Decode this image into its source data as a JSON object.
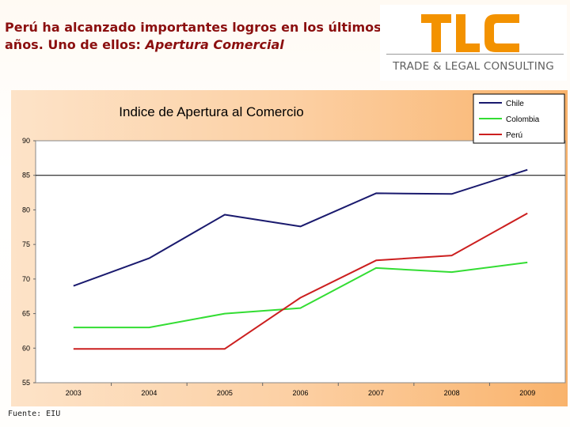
{
  "header": {
    "headline_line1": "Perú ha alcanzado importantes logros en los últimos",
    "headline_line2_plain": "años.  Uno de ellos: ",
    "headline_line2_italic": "Apertura Comercial"
  },
  "logo": {
    "mark": "TLC",
    "subtitle": "TRADE & LEGAL CONSULTING",
    "mark_color": "#f39200"
  },
  "footer": {
    "source": "Fuente: EIU"
  },
  "chart_data": {
    "type": "line",
    "title": "Indice de Apertura al Comercio",
    "x": [
      "2003",
      "2004",
      "2005",
      "2006",
      "2007",
      "2008",
      "2009"
    ],
    "ylim": [
      55,
      90
    ],
    "yticks": [
      90,
      85,
      80,
      75,
      70,
      65,
      60,
      55
    ],
    "grid": false,
    "reference_line": 85,
    "legend_position": "top-right",
    "series": [
      {
        "name": "Chile",
        "color": "#1a1a6e",
        "values": [
          69.0,
          73.0,
          79.3,
          77.6,
          82.4,
          82.3,
          85.8
        ]
      },
      {
        "name": "Colombia",
        "color": "#33dd33",
        "values": [
          63.0,
          63.0,
          65.0,
          65.8,
          71.6,
          71.0,
          72.4
        ]
      },
      {
        "name": "Perú",
        "color": "#cc1f1f",
        "values": [
          59.9,
          59.9,
          59.9,
          67.3,
          72.7,
          73.4,
          79.5
        ]
      }
    ]
  }
}
